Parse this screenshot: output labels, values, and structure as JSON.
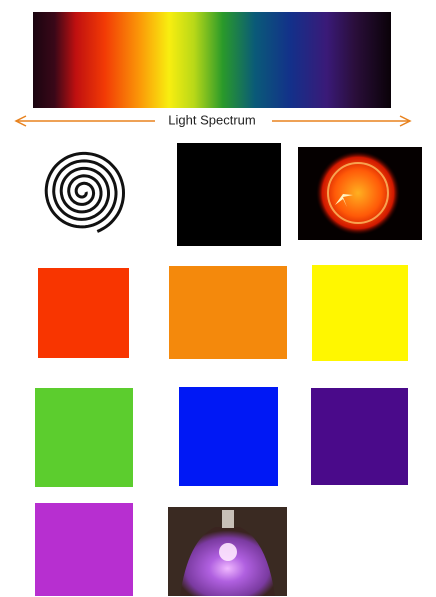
{
  "label": "Light Spectrum"
}
